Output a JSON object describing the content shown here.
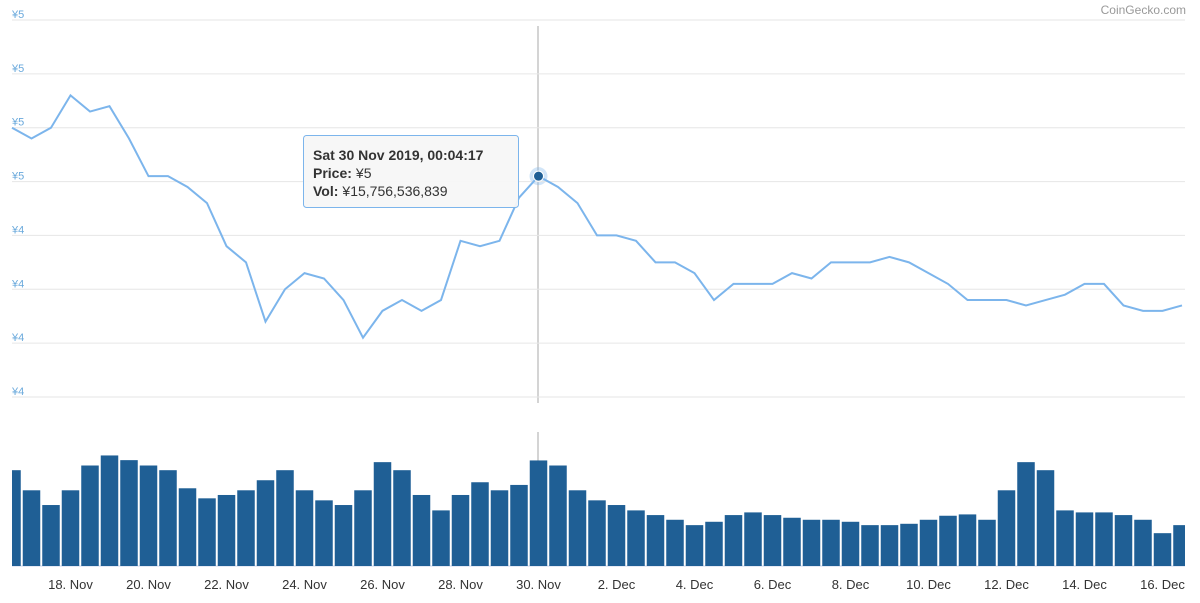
{
  "watermark": "CoinGecko.com",
  "chart_data": [
    {
      "type": "line",
      "categories": [
        null,
        null,
        null,
        "18. Nov",
        null,
        null,
        null,
        "20. Nov",
        null,
        null,
        null,
        "22. Nov",
        null,
        null,
        null,
        "24. Nov",
        null,
        null,
        null,
        "26. Nov",
        null,
        null,
        null,
        "28. Nov",
        null,
        null,
        null,
        "30. Nov",
        null,
        null,
        null,
        "2. Dec",
        null,
        null,
        null,
        "4. Dec",
        null,
        null,
        null,
        "6. Dec",
        null,
        null,
        null,
        "8. Dec",
        null,
        null,
        null,
        "10. Dec",
        null,
        null,
        null,
        "12. Dec",
        null,
        null,
        null,
        "14. Dec",
        null,
        null,
        null,
        "16. Dec",
        null
      ],
      "values": [
        4.6,
        4.58,
        4.6,
        4.66,
        4.63,
        4.64,
        4.58,
        4.51,
        4.51,
        4.49,
        4.46,
        4.38,
        4.35,
        4.24,
        4.3,
        4.33,
        4.32,
        4.28,
        4.21,
        4.26,
        4.28,
        4.26,
        4.28,
        4.39,
        4.38,
        4.39,
        4.47,
        4.51,
        4.49,
        4.46,
        4.4,
        4.4,
        4.39,
        4.35,
        4.35,
        4.33,
        4.28,
        4.31,
        4.31,
        4.31,
        4.33,
        4.32,
        4.35,
        4.35,
        4.35,
        4.36,
        4.35,
        4.33,
        4.31,
        4.28,
        4.28,
        4.28,
        4.27,
        4.28,
        4.29,
        4.31,
        4.31,
        4.27,
        4.26,
        4.26,
        4.27
      ],
      "color": "#7cb5ec",
      "ylim": [
        4.1,
        4.8
      ],
      "yticks": [
        {
          "value": 4.1,
          "label": "¥4"
        },
        {
          "value": 4.2,
          "label": "¥4"
        },
        {
          "value": 4.3,
          "label": "¥4"
        },
        {
          "value": 4.4,
          "label": "¥4"
        },
        {
          "value": 4.5,
          "label": "¥5"
        },
        {
          "value": 4.6,
          "label": "¥5"
        },
        {
          "value": 4.7,
          "label": "¥5"
        },
        {
          "value": 4.8,
          "label": "¥5"
        }
      ],
      "grid": true
    },
    {
      "type": "bar",
      "values": [
        14300000000,
        11300000000,
        9100000000,
        11300000000,
        15000000000,
        16500000000,
        15800000000,
        15000000000,
        14300000000,
        11600000000,
        10100000000,
        10600000000,
        11300000000,
        12800000000,
        14300000000,
        11300000000,
        9800000000,
        9100000000,
        11300000000,
        15500000000,
        14300000000,
        10600000000,
        8300000000,
        10600000000,
        12500000000,
        11300000000,
        12100000000,
        15756536839,
        15000000000,
        11300000000,
        9800000000,
        9100000000,
        8300000000,
        7600000000,
        6900000000,
        6100000000,
        6600000000,
        7600000000,
        8000000000,
        7600000000,
        7200000000,
        6900000000,
        6900000000,
        6600000000,
        6100000000,
        6100000000,
        6300000000,
        6900000000,
        7500000000,
        7700000000,
        6900000000,
        11300000000,
        15500000000,
        14300000000,
        8300000000,
        8000000000,
        8000000000,
        7600000000,
        6900000000,
        4900000000,
        6100000000
      ],
      "color": "#1f5f95",
      "ylim": [
        0,
        20000000000
      ]
    }
  ],
  "tooltip": {
    "header": "Sat 30 Nov 2019, 00:04:17",
    "rows": [
      {
        "label": "Price:",
        "value": "¥5"
      },
      {
        "label": "Vol:",
        "value": "¥15,756,536,839"
      }
    ]
  }
}
